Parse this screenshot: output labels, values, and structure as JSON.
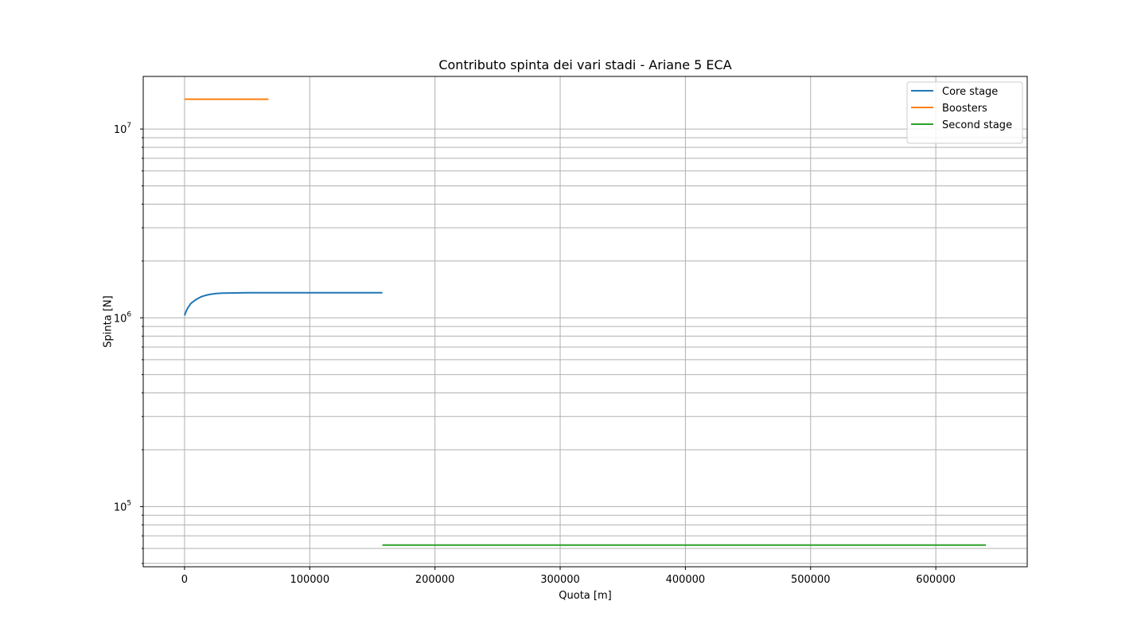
{
  "chart_data": {
    "type": "line",
    "title": "Contributo spinta dei vari stadi - Ariane 5 ECA",
    "xlabel": "Quota [m]",
    "ylabel": "Spinta [N]",
    "xlim": [
      -33000,
      673000
    ],
    "ylim": [
      48000,
      19000000
    ],
    "yscale": "log",
    "grid": true,
    "legend_position": "top-right",
    "x_ticks": [
      0,
      100000,
      200000,
      300000,
      400000,
      500000,
      600000
    ],
    "x_tick_labels": [
      "0",
      "100000",
      "200000",
      "300000",
      "400000",
      "500000",
      "600000"
    ],
    "y_major_ticks": [
      {
        "value": 100000,
        "base": "10",
        "exp": "5"
      },
      {
        "value": 1000000,
        "base": "10",
        "exp": "6"
      },
      {
        "value": 10000000,
        "base": "10",
        "exp": "7"
      }
    ],
    "y_minor_ticks": [
      50000,
      60000,
      70000,
      80000,
      90000,
      200000,
      300000,
      400000,
      500000,
      600000,
      700000,
      800000,
      900000,
      2000000,
      3000000,
      4000000,
      5000000,
      6000000,
      7000000,
      8000000,
      9000000
    ],
    "series": [
      {
        "name": "Core stage",
        "color": "#1f77b4",
        "x": [
          0,
          1000,
          2000,
          3000,
          5000,
          7000,
          10000,
          13000,
          16000,
          20000,
          25000,
          30000,
          40000,
          50000,
          60000,
          80000,
          100000,
          120000,
          140000,
          158000
        ],
        "y": [
          1030000,
          1070000,
          1110000,
          1140000,
          1190000,
          1220000,
          1260000,
          1290000,
          1310000,
          1330000,
          1345000,
          1350000,
          1355000,
          1357000,
          1358000,
          1358000,
          1358000,
          1358000,
          1358000,
          1358000
        ]
      },
      {
        "name": "Boosters",
        "color": "#ff7f0e",
        "x": [
          0,
          67000
        ],
        "y": [
          14400000,
          14400000
        ]
      },
      {
        "name": "Second stage",
        "color": "#2ca02c",
        "x": [
          158000,
          640000
        ],
        "y": [
          62500,
          62500
        ]
      }
    ]
  }
}
